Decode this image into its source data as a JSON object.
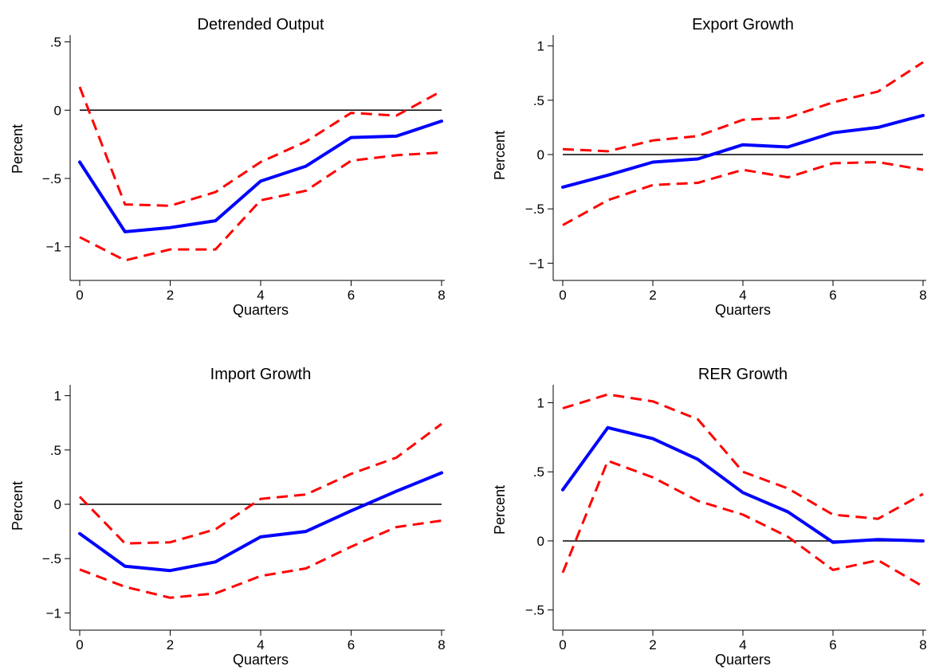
{
  "chart_data": [
    {
      "type": "line",
      "title": "Detrended Output",
      "xlabel": "Quarters",
      "ylabel": "Percent",
      "x": [
        0,
        1,
        2,
        3,
        4,
        5,
        6,
        7,
        8
      ],
      "xticks": [
        0,
        2,
        4,
        6,
        8
      ],
      "xtick_labels": [
        "0",
        "2",
        "4",
        "6",
        "8"
      ],
      "ylim": [
        -1.2,
        0.55
      ],
      "yticks": [
        -1,
        -0.5,
        0,
        0.5
      ],
      "ytick_labels": [
        "−1",
        "−.5",
        "0",
        ".5"
      ],
      "reference_line": 0,
      "series": [
        {
          "role": "estimate",
          "color": "#0000ff",
          "values": [
            -0.38,
            -0.89,
            -0.86,
            -0.81,
            -0.52,
            -0.41,
            -0.2,
            -0.19,
            -0.08
          ]
        },
        {
          "role": "upper",
          "color": "#ff0000",
          "values": [
            0.17,
            -0.69,
            -0.7,
            -0.6,
            -0.38,
            -0.23,
            -0.02,
            -0.04,
            0.14
          ]
        },
        {
          "role": "lower",
          "color": "#ff0000",
          "values": [
            -0.93,
            -1.1,
            -1.02,
            -1.02,
            -0.66,
            -0.59,
            -0.37,
            -0.33,
            -0.31
          ]
        }
      ]
    },
    {
      "type": "line",
      "title": "Export Growth",
      "xlabel": "Quarters",
      "ylabel": "Percent",
      "x": [
        0,
        1,
        2,
        3,
        4,
        5,
        6,
        7,
        8
      ],
      "xticks": [
        0,
        2,
        4,
        6,
        8
      ],
      "xtick_labels": [
        "0",
        "2",
        "4",
        "6",
        "8"
      ],
      "ylim": [
        -1.1,
        1.1
      ],
      "yticks": [
        -1,
        -0.5,
        0,
        0.5,
        1
      ],
      "ytick_labels": [
        "−1",
        "−.5",
        "0",
        ".5",
        "1"
      ],
      "reference_line": 0,
      "series": [
        {
          "role": "estimate",
          "color": "#0000ff",
          "values": [
            -0.3,
            -0.19,
            -0.07,
            -0.04,
            0.09,
            0.07,
            0.2,
            0.25,
            0.36
          ]
        },
        {
          "role": "upper",
          "color": "#ff0000",
          "values": [
            0.05,
            0.03,
            0.13,
            0.17,
            0.32,
            0.34,
            0.48,
            0.58,
            0.85
          ]
        },
        {
          "role": "lower",
          "color": "#ff0000",
          "values": [
            -0.65,
            -0.42,
            -0.28,
            -0.26,
            -0.14,
            -0.21,
            -0.08,
            -0.07,
            -0.14
          ]
        }
      ]
    },
    {
      "type": "line",
      "title": "Import Growth",
      "xlabel": "Quarters",
      "ylabel": "Percent",
      "x": [
        0,
        1,
        2,
        3,
        4,
        5,
        6,
        7,
        8
      ],
      "xticks": [
        0,
        2,
        4,
        6,
        8
      ],
      "xtick_labels": [
        "0",
        "2",
        "4",
        "6",
        "8"
      ],
      "ylim": [
        -1.1,
        1.1
      ],
      "yticks": [
        -1,
        -0.5,
        0,
        0.5,
        1
      ],
      "ytick_labels": [
        "−1",
        "−.5",
        "0",
        ".5",
        "1"
      ],
      "reference_line": 0,
      "series": [
        {
          "role": "estimate",
          "color": "#0000ff",
          "values": [
            -0.27,
            -0.57,
            -0.61,
            -0.53,
            -0.3,
            -0.25,
            -0.06,
            0.12,
            0.29
          ]
        },
        {
          "role": "upper",
          "color": "#ff0000",
          "values": [
            0.07,
            -0.36,
            -0.35,
            -0.23,
            0.05,
            0.09,
            0.28,
            0.43,
            0.74
          ]
        },
        {
          "role": "lower",
          "color": "#ff0000",
          "values": [
            -0.6,
            -0.76,
            -0.86,
            -0.82,
            -0.66,
            -0.59,
            -0.39,
            -0.21,
            -0.15
          ]
        }
      ]
    },
    {
      "type": "line",
      "title": "RER Growth",
      "xlabel": "Quarters",
      "ylabel": "Percent",
      "x": [
        0,
        1,
        2,
        3,
        4,
        5,
        6,
        7,
        8
      ],
      "xticks": [
        0,
        2,
        4,
        6,
        8
      ],
      "xtick_labels": [
        "0",
        "2",
        "4",
        "6",
        "8"
      ],
      "ylim": [
        -0.6,
        1.13
      ],
      "yticks": [
        -0.5,
        0,
        0.5,
        1
      ],
      "ytick_labels": [
        "−.5",
        "0",
        ".5",
        "1"
      ],
      "reference_line": 0,
      "series": [
        {
          "role": "estimate",
          "color": "#0000ff",
          "values": [
            0.37,
            0.82,
            0.74,
            0.59,
            0.35,
            0.21,
            -0.01,
            0.01,
            0.0
          ]
        },
        {
          "role": "upper",
          "color": "#ff0000",
          "values": [
            0.96,
            1.06,
            1.01,
            0.88,
            0.5,
            0.38,
            0.19,
            0.16,
            0.34
          ]
        },
        {
          "role": "lower",
          "color": "#ff0000",
          "values": [
            -0.23,
            0.58,
            0.46,
            0.29,
            0.19,
            0.03,
            -0.21,
            -0.14,
            -0.33
          ]
        }
      ]
    }
  ]
}
